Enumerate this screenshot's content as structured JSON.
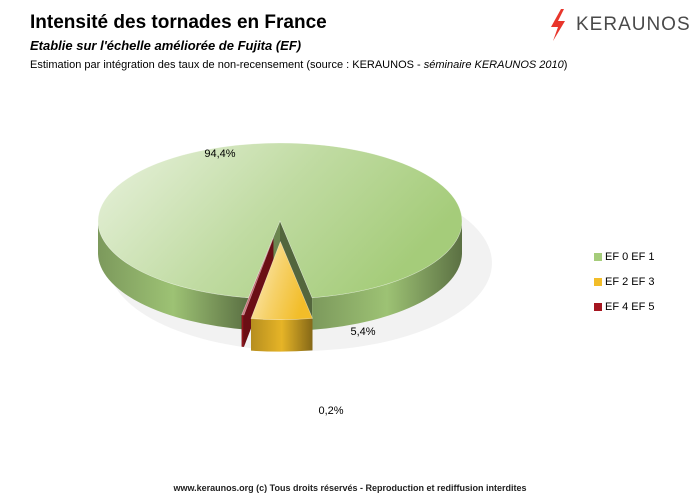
{
  "header": {
    "title": "Intensité des tornades en France",
    "subtitle": "Etablie sur l'échelle améliorée de Fujita (EF)",
    "note_main": "Estimation par intégration des taux de non-recensement (source : KERAUNOS - ",
    "note_italic": "séminaire KERAUNOS 2010",
    "note_end": ")"
  },
  "logo": {
    "text": "KERAUNOS",
    "accent_color": "#e8362c"
  },
  "footer": {
    "text": "www.keraunos.org  (c) Tous droits réservés - Reproduction et rediffusion interdites"
  },
  "chart_data": {
    "type": "pie",
    "style": "3d-exploded",
    "legend_position": "right",
    "slices": [
      {
        "label": "EF 0   EF 1",
        "value": 94.4,
        "data_label": "94,4%",
        "color": "#a5cc7a"
      },
      {
        "label": "EF 2   EF 3",
        "value": 5.4,
        "data_label": "5,4%",
        "color": "#f2bd29"
      },
      {
        "label": "EF 4   EF 5",
        "value": 0.2,
        "data_label": "0,2%",
        "color": "#a51620"
      }
    ]
  }
}
